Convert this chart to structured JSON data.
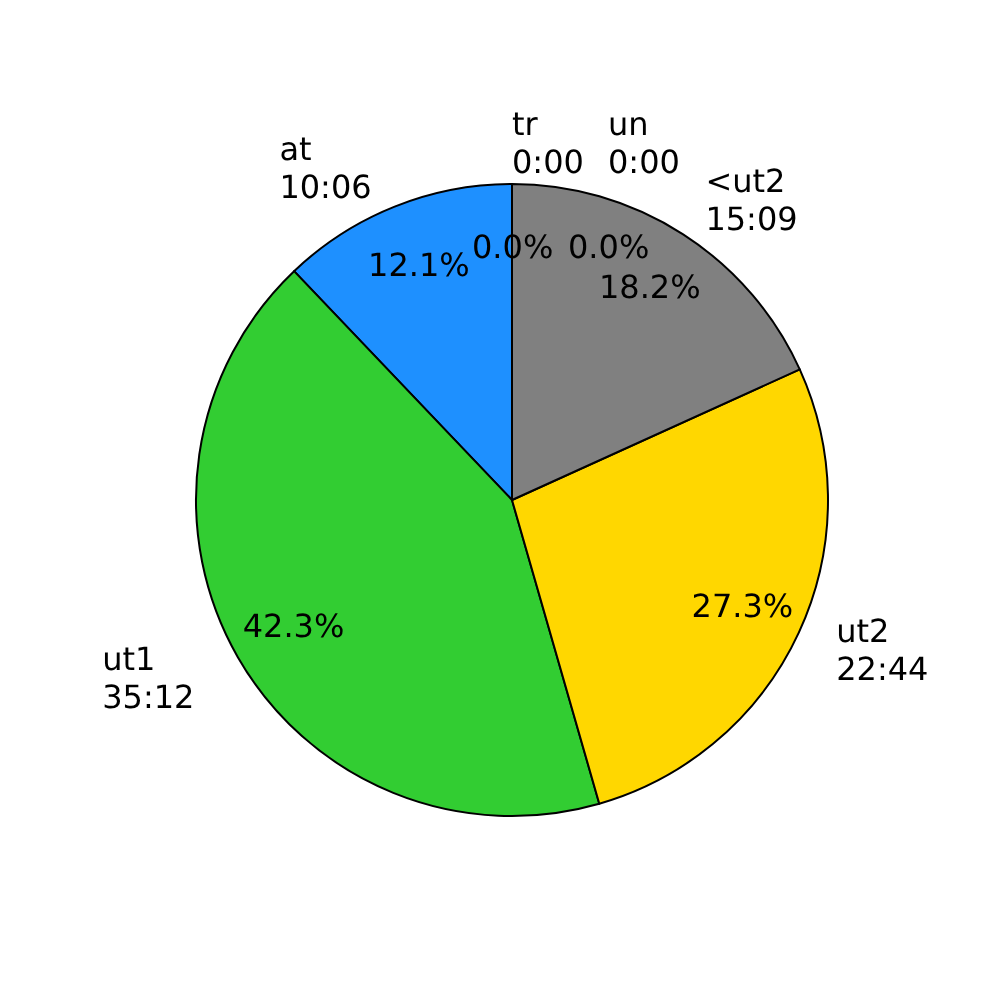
{
  "chart_data": {
    "type": "pie",
    "categories": [
      "at\n10:06",
      "ut1\n35:12",
      "ut2\n22:44",
      "<ut2\n15:09",
      "tr\n0:00",
      "un\n0:00"
    ],
    "values": [
      12.1,
      42.3,
      27.3,
      18.2,
      0,
      0
    ],
    "value_labels": [
      "12.1%",
      "42.3%",
      "27.3%",
      "18.2%",
      "0.0%",
      "0.0%"
    ],
    "colors": [
      "#1e90ff",
      "#32cd32",
      "#ffd700",
      "#808080",
      "#ff4500",
      "#9370db"
    ]
  }
}
